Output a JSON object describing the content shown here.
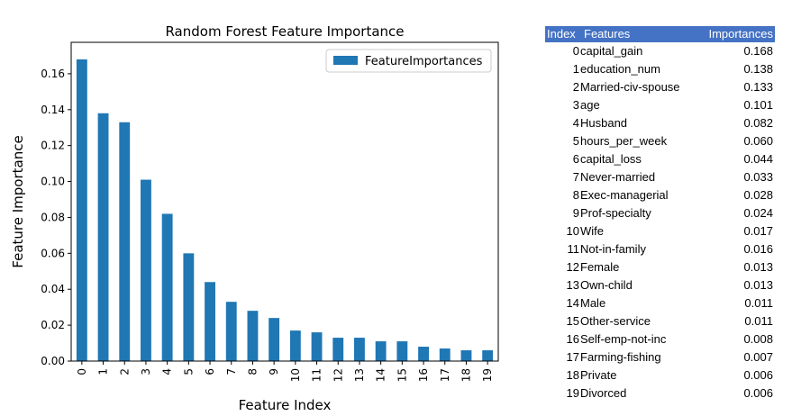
{
  "chart_data": {
    "type": "bar",
    "title": "Random Forest Feature Importance",
    "xlabel": "Feature Index",
    "ylabel": "Feature Importance",
    "categories": [
      "0",
      "1",
      "2",
      "3",
      "4",
      "5",
      "6",
      "7",
      "8",
      "9",
      "10",
      "11",
      "12",
      "13",
      "14",
      "15",
      "16",
      "17",
      "18",
      "19"
    ],
    "series": [
      {
        "name": "FeatureImportances",
        "color": "#1f77b4",
        "values": [
          0.168,
          0.138,
          0.133,
          0.101,
          0.082,
          0.06,
          0.044,
          0.033,
          0.028,
          0.024,
          0.017,
          0.016,
          0.013,
          0.013,
          0.011,
          0.011,
          0.008,
          0.007,
          0.006,
          0.006
        ]
      }
    ],
    "ylim": [
      0,
      0.1775
    ],
    "yticks": [
      "0.00",
      "0.02",
      "0.04",
      "0.06",
      "0.08",
      "0.10",
      "0.12",
      "0.14",
      "0.16"
    ],
    "legend_position": "top-right",
    "grid": false
  },
  "table": {
    "header_color": "#4472c4",
    "columns": [
      "Index",
      "Features",
      "Importances"
    ],
    "rows": [
      {
        "index": "0",
        "feature": "capital_gain",
        "importance": "0.168"
      },
      {
        "index": "1",
        "feature": "education_num",
        "importance": "0.138"
      },
      {
        "index": "2",
        "feature": "Married-civ-spouse",
        "importance": "0.133"
      },
      {
        "index": "3",
        "feature": "age",
        "importance": "0.101"
      },
      {
        "index": "4",
        "feature": "Husband",
        "importance": "0.082"
      },
      {
        "index": "5",
        "feature": "hours_per_week",
        "importance": "0.060"
      },
      {
        "index": "6",
        "feature": "capital_loss",
        "importance": "0.044"
      },
      {
        "index": "7",
        "feature": "Never-married",
        "importance": "0.033"
      },
      {
        "index": "8",
        "feature": "Exec-managerial",
        "importance": "0.028"
      },
      {
        "index": "9",
        "feature": "Prof-specialty",
        "importance": "0.024"
      },
      {
        "index": "10",
        "feature": "Wife",
        "importance": "0.017"
      },
      {
        "index": "11",
        "feature": "Not-in-family",
        "importance": "0.016"
      },
      {
        "index": "12",
        "feature": "Female",
        "importance": "0.013"
      },
      {
        "index": "13",
        "feature": "Own-child",
        "importance": "0.013"
      },
      {
        "index": "14",
        "feature": "Male",
        "importance": "0.011"
      },
      {
        "index": "15",
        "feature": "Other-service",
        "importance": "0.011"
      },
      {
        "index": "16",
        "feature": "Self-emp-not-inc",
        "importance": "0.008"
      },
      {
        "index": "17",
        "feature": "Farming-fishing",
        "importance": "0.007"
      },
      {
        "index": "18",
        "feature": "Private",
        "importance": "0.006"
      },
      {
        "index": "19",
        "feature": "Divorced",
        "importance": "0.006"
      }
    ]
  }
}
